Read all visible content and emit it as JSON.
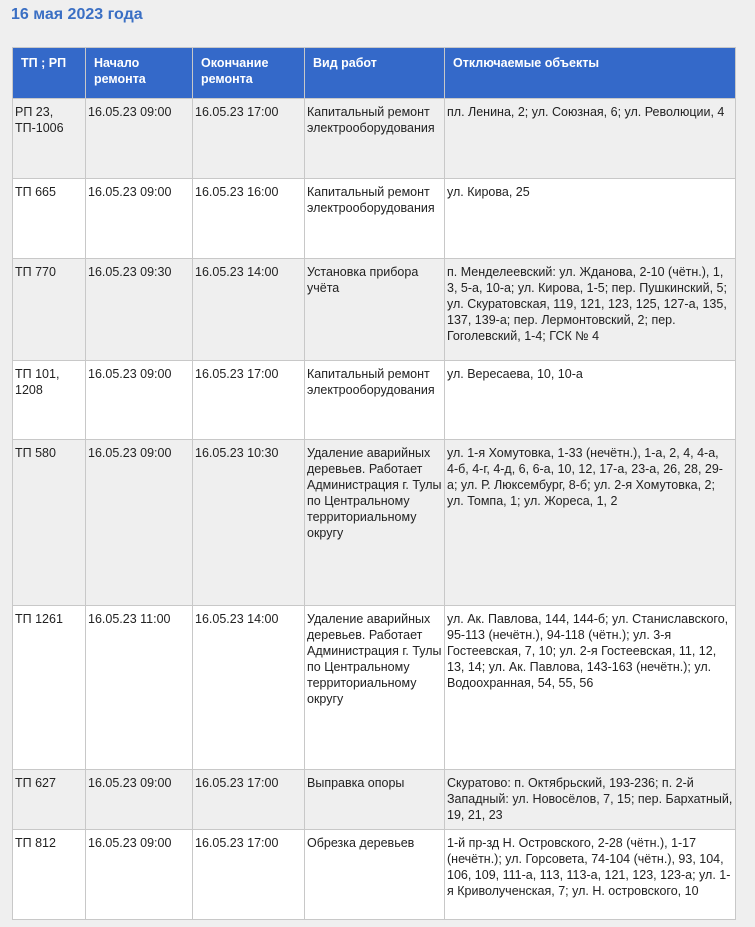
{
  "title": "16 мая 2023 года",
  "columns": [
    "ТП ; РП",
    "Начало ремонта",
    "Окончание ремонта",
    "Вид работ",
    "Отключаемые объекты"
  ],
  "rows": [
    {
      "tp": "РП 23, ТП-1006",
      "start": "16.05.23 09:00",
      "end": "16.05.23 17:00",
      "work": "Капитальный ремонт электрооборудования",
      "objects": "пл. Ленина, 2; ул. Союзная, 6; ул. Революции, 4"
    },
    {
      "tp": "ТП 665",
      "start": "16.05.23 09:00",
      "end": "16.05.23 16:00",
      "work": "Капитальный ремонт электрооборудования",
      "objects": "ул. Кирова, 25"
    },
    {
      "tp": "ТП 770",
      "start": "16.05.23 09:30",
      "end": "16.05.23 14:00",
      "work": "Установка прибора учёта",
      "objects": "п. Менделеевский: ул. Жданова, 2-10 (чётн.), 1, 3, 5-а, 10-а; ул. Кирова, 1-5; пер. Пушкинский, 5; ул. Скуратовская, 119, 121, 123, 125, 127-а, 135, 137, 139-а; пер. Лермонтовский, 2; пер. Гоголевский, 1-4; ГСК № 4"
    },
    {
      "tp": "ТП 101, 1208",
      "start": "16.05.23 09:00",
      "end": "16.05.23 17:00",
      "work": "Капитальный ремонт электрооборудования",
      "objects": "ул. Вересаева, 10, 10-а"
    },
    {
      "tp": "ТП 580",
      "start": "16.05.23 09:00",
      "end": "16.05.23 10:30",
      "work": "Удаление аварийных деревьев. Работает Администрация г. Тулы по Центральному территориальному округу",
      "objects": "ул. 1-я Хомутовка, 1-33 (нечётн.), 1-а, 2, 4, 4-а, 4-б, 4-г, 4-д, 6, 6-а, 10, 12, 17-а, 23-а, 26, 28, 29-а; ул. Р. Люксембург, 8-б; ул. 2-я Хомутовка, 2; ул. Томпа, 1; ул. Жореса, 1, 2"
    },
    {
      "tp": "ТП 1261",
      "start": "16.05.23 11:00",
      "end": "16.05.23 14:00",
      "work": "Удаление аварийных деревьев. Работает Администрация г. Тулы по Центральному территориальному округу",
      "objects": "ул. Ак. Павлова, 144, 144-б; ул. Станиславского, 95-113 (нечётн.), 94-118 (чётн.); ул. 3-я Гостеевская, 7, 10; ул. 2-я Гостеевская, 11, 12, 13, 14; ул. Ак. Павлова, 143-163 (нечётн.); ул. Водоохранная, 54, 55, 56"
    },
    {
      "tp": "ТП 627",
      "start": "16.05.23 09:00",
      "end": "16.05.23 17:00",
      "work": "Выправка опоры",
      "objects": "Скуратово: п. Октябрьский, 193-236; п. 2-й Западный: ул. Новосёлов, 7, 15; пер. Бархатный, 19, 21, 23"
    },
    {
      "tp": "ТП 812",
      "start": "16.05.23 09:00",
      "end": "16.05.23 17:00",
      "work": "Обрезка деревьев",
      "objects": "1-й пр-зд Н. Островского, 2-28 (чётн.), 1-17 (нечётн.); ул. Горсовета, 74-104 (чётн.), 93, 104, 106, 109, 111-а, 113, 113-а, 121, 123, 123-а; ул. 1-я Криволученская, 7; ул. Н. островского, 10"
    }
  ]
}
